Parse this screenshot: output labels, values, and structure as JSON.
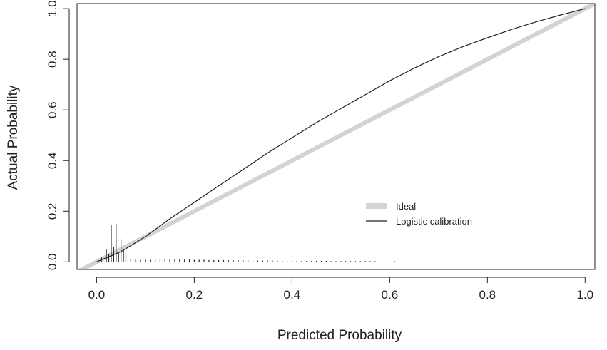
{
  "chart_data": {
    "type": "line",
    "xlabel": "Predicted Probability",
    "ylabel": "Actual Probability",
    "xlim": [
      -0.04,
      1.02
    ],
    "ylim": [
      -0.03,
      1.02
    ],
    "x_ticks": [
      "0.0",
      "0.2",
      "0.4",
      "0.6",
      "0.8",
      "1.0"
    ],
    "x_tick_values": [
      0,
      0.2,
      0.4,
      0.6,
      0.8,
      1.0
    ],
    "y_ticks": [
      "0.0",
      "0.2",
      "0.4",
      "0.6",
      "0.8",
      "1.0"
    ],
    "y_tick_values": [
      0,
      0.2,
      0.4,
      0.6,
      0.8,
      1.0
    ],
    "grid": false,
    "legend_position": "right-center",
    "legend": [
      {
        "label": "Ideal",
        "color": "#d3d3d3",
        "style": "thick"
      },
      {
        "label": "Logistic calibration",
        "color": "#222222",
        "style": "thin"
      }
    ],
    "series": [
      {
        "name": "Ideal",
        "color": "#d3d3d3",
        "x": [
          -0.04,
          1.02
        ],
        "y": [
          -0.04,
          1.02
        ]
      },
      {
        "name": "Logistic calibration",
        "color": "#222222",
        "x": [
          0.0,
          0.05,
          0.1,
          0.15,
          0.2,
          0.25,
          0.3,
          0.35,
          0.4,
          0.45,
          0.5,
          0.55,
          0.6,
          0.65,
          0.7,
          0.75,
          0.8,
          0.85,
          0.9,
          0.95,
          1.0
        ],
        "y": [
          0.0,
          0.04,
          0.1,
          0.17,
          0.235,
          0.3,
          0.365,
          0.43,
          0.49,
          0.55,
          0.605,
          0.66,
          0.715,
          0.765,
          0.81,
          0.85,
          0.885,
          0.918,
          0.948,
          0.975,
          1.0
        ]
      }
    ],
    "spike_histogram": {
      "x": [
        0.01,
        0.02,
        0.025,
        0.03,
        0.035,
        0.04,
        0.045,
        0.05,
        0.055,
        0.06,
        0.07,
        0.08,
        0.09,
        0.1,
        0.11,
        0.12,
        0.13,
        0.14,
        0.15,
        0.16,
        0.17,
        0.18,
        0.19,
        0.2,
        0.21,
        0.22,
        0.23,
        0.24,
        0.25,
        0.26,
        0.27,
        0.28,
        0.29,
        0.3,
        0.31,
        0.32,
        0.33,
        0.34,
        0.35,
        0.36,
        0.37,
        0.38,
        0.39,
        0.4,
        0.41,
        0.42,
        0.43,
        0.44,
        0.45,
        0.46,
        0.47,
        0.48,
        0.49,
        0.5,
        0.51,
        0.52,
        0.53,
        0.54,
        0.55,
        0.56,
        0.57,
        0.61
      ],
      "height": [
        0.02,
        0.05,
        0.03,
        0.145,
        0.06,
        0.15,
        0.035,
        0.09,
        0.05,
        0.03,
        0.012,
        0.009,
        0.008,
        0.008,
        0.008,
        0.008,
        0.009,
        0.01,
        0.01,
        0.01,
        0.01,
        0.009,
        0.009,
        0.008,
        0.008,
        0.008,
        0.007,
        0.007,
        0.007,
        0.007,
        0.006,
        0.006,
        0.006,
        0.006,
        0.005,
        0.005,
        0.005,
        0.005,
        0.005,
        0.005,
        0.004,
        0.004,
        0.004,
        0.004,
        0.004,
        0.004,
        0.004,
        0.004,
        0.004,
        0.004,
        0.004,
        0.003,
        0.003,
        0.003,
        0.003,
        0.003,
        0.003,
        0.003,
        0.003,
        0.003,
        0.003,
        0.003
      ]
    }
  }
}
